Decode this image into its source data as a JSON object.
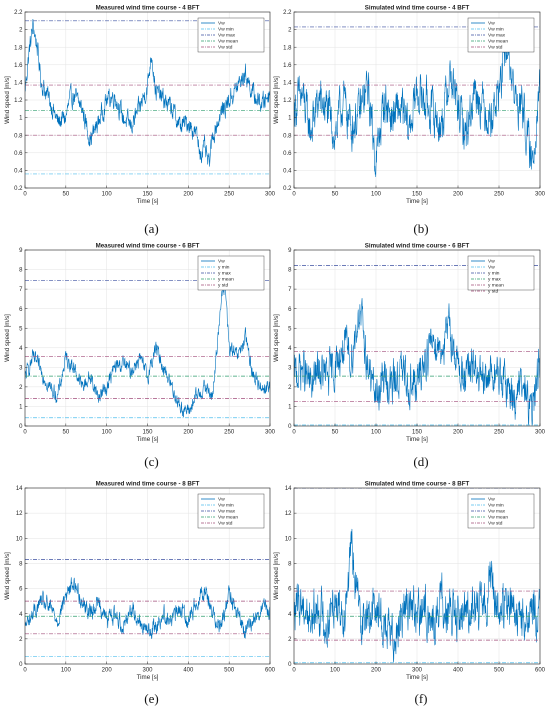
{
  "chart_data": [
    {
      "type": "line",
      "panel_label": "(a)",
      "title": "Measured wind time course - 4 BFT",
      "xlabel": "Time [s]",
      "ylabel": "Wind speed [m/s]",
      "xlim": [
        0,
        300
      ],
      "ylim": [
        0.2,
        2.2
      ],
      "xticks": [
        0,
        50,
        100,
        150,
        200,
        250,
        300
      ],
      "yticks": [
        0.2,
        0.4,
        0.6,
        0.8,
        1,
        1.2,
        1.4,
        1.6,
        1.8,
        2,
        2.2
      ],
      "grid": true,
      "legend_position": "top-right",
      "series": [
        {
          "name": "Vw",
          "style": "solid",
          "color": "#0072BD",
          "x": [
            0,
            5,
            10,
            15,
            20,
            30,
            40,
            50,
            55,
            60,
            70,
            80,
            90,
            100,
            110,
            120,
            130,
            140,
            150,
            155,
            160,
            170,
            180,
            190,
            200,
            210,
            215,
            220,
            225,
            230,
            240,
            250,
            260,
            270,
            280,
            290,
            300
          ],
          "values": [
            1.3,
            1.75,
            2.05,
            1.8,
            1.4,
            1.2,
            0.95,
            1.0,
            1.2,
            1.25,
            1.1,
            0.75,
            0.95,
            1.2,
            1.25,
            1.0,
            0.9,
            1.1,
            1.35,
            1.75,
            1.3,
            1.2,
            1.1,
            0.9,
            0.95,
            0.8,
            0.6,
            0.65,
            0.45,
            0.8,
            1.05,
            1.2,
            1.35,
            1.5,
            1.25,
            1.15,
            1.3
          ]
        },
        {
          "name": "Vw min",
          "style": "dashdot",
          "color": "#4DBEEE",
          "x": [
            0,
            300
          ],
          "values": [
            0.36,
            0.36
          ]
        },
        {
          "name": "Vw max",
          "style": "dashdot",
          "color": "#3A4FA0",
          "x": [
            0,
            300
          ],
          "values": [
            2.1,
            2.1
          ]
        },
        {
          "name": "Vw mean",
          "style": "dashdot",
          "color": "#2E9E6E",
          "x": [
            0,
            300
          ],
          "values": [
            1.08,
            1.08
          ]
        },
        {
          "name": "Vw std",
          "style": "dashdot",
          "color": "#A14C7A",
          "x": [
            0,
            300
          ],
          "values": [
            1.37,
            1.37
          ],
          "x2": [
            0,
            300
          ],
          "values2": [
            0.8,
            0.8
          ]
        }
      ]
    },
    {
      "type": "line",
      "panel_label": "(b)",
      "title": "Simulated wind time course - 4 BFT",
      "xlabel": "Time [s]",
      "ylabel": "Wind speed [m/s]",
      "xlim": [
        0,
        300
      ],
      "ylim": [
        0.2,
        2.2
      ],
      "xticks": [
        0,
        50,
        100,
        150,
        200,
        250,
        300
      ],
      "yticks": [
        0.2,
        0.4,
        0.6,
        0.8,
        1,
        1.2,
        1.4,
        1.6,
        1.8,
        2,
        2.2
      ],
      "grid": true,
      "legend_position": "top-right",
      "series": [
        {
          "name": "Vw",
          "style": "solid",
          "color": "#0072BD",
          "x": [
            0,
            10,
            20,
            30,
            40,
            50,
            60,
            70,
            80,
            90,
            100,
            110,
            120,
            130,
            140,
            150,
            160,
            170,
            180,
            190,
            200,
            210,
            220,
            230,
            240,
            250,
            260,
            270,
            280,
            290,
            300
          ],
          "values": [
            1.1,
            1.25,
            0.85,
            1.2,
            1.1,
            0.8,
            1.2,
            0.9,
            1.05,
            1.35,
            0.5,
            1.2,
            1.0,
            1.1,
            0.85,
            1.3,
            1.2,
            1.05,
            0.9,
            1.5,
            1.1,
            0.8,
            1.35,
            1.15,
            1.0,
            1.3,
            1.8,
            1.2,
            1.1,
            0.4,
            1.5
          ]
        },
        {
          "name": "Vw min",
          "style": "dashdot",
          "color": "#4DBEEE",
          "x": [
            0,
            300
          ],
          "values": [
            0.14,
            0.14
          ]
        },
        {
          "name": "Vw max",
          "style": "dashdot",
          "color": "#3A4FA0",
          "x": [
            0,
            300
          ],
          "values": [
            2.03,
            2.03
          ]
        },
        {
          "name": "Vw mean",
          "style": "dashdot",
          "color": "#2E9E6E",
          "x": [
            0,
            300
          ],
          "values": [
            1.08,
            1.08
          ]
        },
        {
          "name": "Vw std",
          "style": "dashdot",
          "color": "#A14C7A",
          "x": [
            0,
            300
          ],
          "values": [
            1.37,
            1.37
          ],
          "x2": [
            0,
            300
          ],
          "values2": [
            0.8,
            0.8
          ]
        }
      ]
    },
    {
      "type": "line",
      "panel_label": "(c)",
      "title": "Measured wind time course - 6 BFT",
      "xlabel": "Time [s]",
      "ylabel": "Wind speed [m/s]",
      "xlim": [
        0,
        300
      ],
      "ylim": [
        0,
        9
      ],
      "xticks": [
        0,
        50,
        100,
        150,
        200,
        250,
        300
      ],
      "yticks": [
        0,
        1,
        2,
        3,
        4,
        5,
        6,
        7,
        8,
        9
      ],
      "grid": true,
      "legend_position": "top-right",
      "series": [
        {
          "name": "Vw",
          "style": "solid",
          "color": "#0072BD",
          "x": [
            0,
            10,
            20,
            30,
            40,
            50,
            60,
            70,
            80,
            90,
            100,
            110,
            120,
            130,
            140,
            150,
            160,
            170,
            180,
            190,
            200,
            210,
            220,
            230,
            240,
            245,
            250,
            260,
            270,
            280,
            290,
            300
          ],
          "values": [
            2.5,
            3.5,
            2.8,
            2.0,
            1.5,
            3.5,
            3.0,
            2.0,
            2.5,
            1.5,
            2.0,
            3.0,
            3.2,
            2.8,
            3.5,
            2.5,
            4.0,
            3.0,
            2.0,
            1.0,
            0.7,
            1.5,
            2.0,
            1.5,
            6.5,
            7.2,
            4.0,
            3.5,
            4.5,
            2.5,
            2.0,
            2.0
          ]
        },
        {
          "name": "y min",
          "style": "dashdot",
          "color": "#4DBEEE",
          "x": [
            0,
            300
          ],
          "values": [
            0.42,
            0.42
          ]
        },
        {
          "name": "y max",
          "style": "dashdot",
          "color": "#3A4FA0",
          "x": [
            0,
            300
          ],
          "values": [
            7.45,
            7.45
          ]
        },
        {
          "name": "y mean",
          "style": "dashdot",
          "color": "#2E9E6E",
          "x": [
            0,
            300
          ],
          "values": [
            2.55,
            2.55
          ]
        },
        {
          "name": "y std",
          "style": "dashdot",
          "color": "#A14C7A",
          "x": [
            0,
            300
          ],
          "values": [
            3.55,
            3.55
          ],
          "x2": [
            0,
            300
          ],
          "values2": [
            1.4,
            1.4
          ]
        }
      ]
    },
    {
      "type": "line",
      "panel_label": "(d)",
      "title": "Simulated wind time course - 6 BFT",
      "xlabel": "Time [s]",
      "ylabel": "Wind speed [m/s]",
      "xlim": [
        0,
        300
      ],
      "ylim": [
        0,
        9
      ],
      "xticks": [
        0,
        50,
        100,
        150,
        200,
        250,
        300
      ],
      "yticks": [
        0,
        1,
        2,
        3,
        4,
        5,
        6,
        7,
        8,
        9
      ],
      "grid": true,
      "legend_position": "top-right",
      "series": [
        {
          "name": "Vw",
          "style": "solid",
          "color": "#0072BD",
          "x": [
            0,
            10,
            20,
            30,
            40,
            50,
            60,
            70,
            80,
            90,
            100,
            110,
            120,
            130,
            140,
            150,
            160,
            170,
            180,
            190,
            200,
            210,
            220,
            230,
            240,
            250,
            260,
            270,
            280,
            290,
            300
          ],
          "values": [
            2.5,
            3.0,
            2.0,
            2.8,
            2.5,
            3.0,
            4.0,
            3.5,
            6.0,
            3.0,
            1.5,
            2.5,
            2.0,
            2.8,
            2.2,
            2.0,
            3.5,
            4.5,
            4.0,
            5.0,
            3.0,
            2.5,
            3.0,
            2.0,
            2.8,
            2.5,
            2.0,
            1.5,
            2.0,
            0.5,
            3.5
          ]
        },
        {
          "name": "Vw",
          "style": "dashdot",
          "color": "#4DBEEE",
          "x": [
            0,
            300
          ],
          "values": [
            0.05,
            0.05
          ]
        },
        {
          "name": "y min",
          "style": "dashdot",
          "color": "#3A4FA0",
          "x": [
            0,
            300
          ],
          "values": [
            8.2,
            8.2
          ]
        },
        {
          "name": "y max",
          "style": "dashdot",
          "color": "#2E9E6E",
          "x": [
            0,
            300
          ],
          "values": [
            2.55,
            2.55
          ]
        },
        {
          "name": "y mean",
          "style": "dashdot",
          "color": "#A14C7A",
          "x": [
            0,
            300
          ],
          "values": [
            3.8,
            3.8
          ]
        },
        {
          "name": "y std",
          "style": "dashdot",
          "color": "#A14C7A",
          "x": [
            0,
            300
          ],
          "values": [
            1.25,
            1.25
          ]
        }
      ]
    },
    {
      "type": "line",
      "panel_label": "(e)",
      "title": "Measured wind time course - 8 BFT",
      "xlabel": "Time [s]",
      "ylabel": "Wind speed [m/s]",
      "xlim": [
        0,
        600
      ],
      "ylim": [
        0,
        14
      ],
      "xticks": [
        0,
        100,
        200,
        300,
        400,
        500,
        600
      ],
      "yticks": [
        0,
        2,
        4,
        6,
        8,
        10,
        12,
        14
      ],
      "grid": true,
      "legend_position": "top-right",
      "series": [
        {
          "name": "Vw",
          "style": "solid",
          "color": "#0072BD",
          "x": [
            0,
            20,
            40,
            60,
            80,
            100,
            120,
            140,
            160,
            180,
            200,
            220,
            240,
            260,
            280,
            300,
            320,
            340,
            360,
            380,
            400,
            420,
            440,
            460,
            480,
            500,
            520,
            540,
            560,
            580,
            600
          ],
          "values": [
            3.0,
            4.0,
            5.0,
            4.5,
            3.5,
            5.5,
            6.5,
            5.0,
            4.0,
            5.0,
            3.5,
            4.0,
            3.0,
            4.5,
            3.5,
            2.5,
            3.0,
            4.0,
            3.5,
            4.5,
            3.5,
            5.0,
            6.0,
            4.0,
            3.0,
            5.5,
            4.0,
            2.5,
            3.5,
            4.5,
            4.0
          ]
        },
        {
          "name": "Vw min",
          "style": "dashdot",
          "color": "#4DBEEE",
          "x": [
            0,
            600
          ],
          "values": [
            0.6,
            0.6
          ]
        },
        {
          "name": "Vw max",
          "style": "dashdot",
          "color": "#3A4FA0",
          "x": [
            0,
            600
          ],
          "values": [
            8.3,
            8.3
          ]
        },
        {
          "name": "Vw mean",
          "style": "dashdot",
          "color": "#2E9E6E",
          "x": [
            0,
            600
          ],
          "values": [
            3.8,
            3.8
          ]
        },
        {
          "name": "Vw std",
          "style": "dashdot",
          "color": "#A14C7A",
          "x": [
            0,
            600
          ],
          "values": [
            5.0,
            5.0
          ],
          "x2": [
            0,
            600
          ],
          "values2": [
            2.4,
            2.4
          ]
        }
      ]
    },
    {
      "type": "line",
      "panel_label": "(f)",
      "title": "Simulated wind time course - 8 BFT",
      "xlabel": "Time [s]",
      "ylabel": "Wind speed [m/s]",
      "xlim": [
        0,
        600
      ],
      "ylim": [
        0,
        14
      ],
      "xticks": [
        0,
        100,
        200,
        300,
        400,
        500,
        600
      ],
      "yticks": [
        0,
        2,
        4,
        6,
        8,
        10,
        12,
        14
      ],
      "grid": true,
      "legend_position": "top-right",
      "series": [
        {
          "name": "Vw",
          "style": "solid",
          "color": "#0072BD",
          "x": [
            0,
            20,
            40,
            60,
            80,
            100,
            120,
            140,
            160,
            180,
            200,
            220,
            240,
            260,
            280,
            300,
            320,
            340,
            360,
            380,
            400,
            420,
            440,
            460,
            480,
            500,
            520,
            540,
            560,
            580,
            600
          ],
          "values": [
            4.0,
            5.0,
            3.5,
            4.5,
            3.0,
            5.5,
            4.0,
            9.0,
            4.0,
            3.5,
            5.0,
            3.0,
            2.0,
            4.0,
            5.0,
            3.5,
            4.5,
            3.0,
            5.0,
            4.0,
            3.5,
            4.5,
            5.0,
            4.0,
            7.0,
            3.5,
            5.0,
            4.0,
            3.0,
            4.5,
            3.5
          ]
        },
        {
          "name": "Vw min",
          "style": "dashdot",
          "color": "#4DBEEE",
          "x": [
            0,
            600
          ],
          "values": [
            0.1,
            0.1
          ]
        },
        {
          "name": "Vw max",
          "style": "dashdot",
          "color": "#3A4FA0",
          "x": [
            0,
            600
          ],
          "values": [
            14.0,
            14.0
          ]
        },
        {
          "name": "Vw mean",
          "style": "dashdot",
          "color": "#2E9E6E",
          "x": [
            0,
            600
          ],
          "values": [
            3.8,
            3.8
          ]
        },
        {
          "name": "Vw std",
          "style": "dashdot",
          "color": "#A14C7A",
          "x": [
            0,
            600
          ],
          "values": [
            5.8,
            5.8
          ],
          "x2": [
            0,
            600
          ],
          "values2": [
            1.9,
            1.9
          ]
        }
      ]
    }
  ]
}
